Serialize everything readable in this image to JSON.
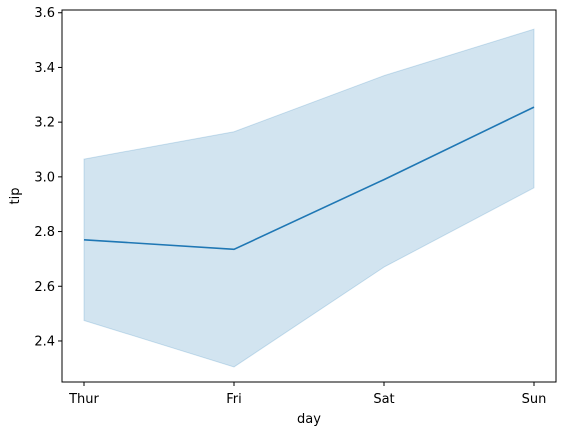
{
  "chart_data": {
    "type": "line",
    "xlabel": "day",
    "ylabel": "tip",
    "categories": [
      "Thur",
      "Fri",
      "Sat",
      "Sun"
    ],
    "ylim": [
      2.25,
      3.61
    ],
    "yticks": [
      2.4,
      2.6,
      2.8,
      3.0,
      3.2,
      3.4,
      3.6
    ],
    "ytick_labels": [
      "2.4",
      "2.6",
      "2.8",
      "3.0",
      "3.2",
      "3.4",
      "3.6"
    ],
    "grid": false,
    "series": [
      {
        "values": [
          2.77,
          2.735,
          2.99,
          3.255
        ],
        "ci_lower": [
          2.475,
          2.305,
          2.67,
          2.96
        ],
        "ci_upper": [
          3.065,
          3.165,
          3.37,
          3.54
        ],
        "color": "#1f77b4",
        "band_color": "#1f77b4"
      }
    ]
  }
}
